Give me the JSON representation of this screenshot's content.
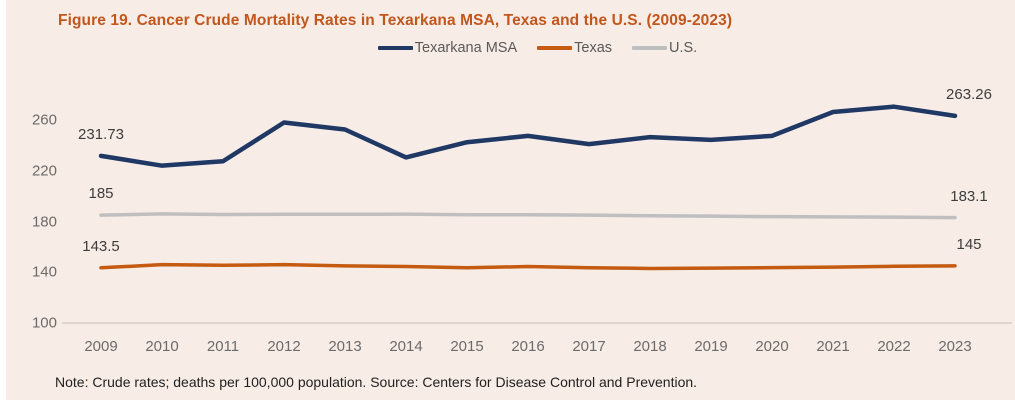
{
  "title": "Figure 19. Cancer Crude Mortality Rates in Texarkana MSA, Texas and the U.S. (2009-2023)",
  "note": "Note: Crude rates; deaths per 100,000 population. Source: Centers for Disease Control and Prevention.",
  "colors": {
    "title_orange": "#c2571d",
    "background": "#f8ece6",
    "axis_line": "#d8cfc9",
    "tick_text": "#6b6b6b",
    "data_label_text": "#3d3d3d"
  },
  "chart_data": {
    "type": "line",
    "title": "Figure 19. Cancer Crude Mortality Rates in Texarkana MSA, Texas and the U.S. (2009-2023)",
    "xlabel": "",
    "ylabel": "",
    "categories": [
      "2009",
      "2010",
      "2011",
      "2012",
      "2013",
      "2014",
      "2015",
      "2016",
      "2017",
      "2018",
      "2019",
      "2020",
      "2021",
      "2022",
      "2023"
    ],
    "yticks": [
      260,
      220,
      180,
      140,
      100
    ],
    "ylim": [
      100,
      285
    ],
    "grid": false,
    "legend_position": "top",
    "series": [
      {
        "name": "Texarkana MSA",
        "color": "#1f3864",
        "stroke_width": 4.5,
        "values": [
          231.73,
          224,
          227.5,
          258,
          252.5,
          230.5,
          242.5,
          247.5,
          241,
          246.5,
          244.3,
          247.5,
          266.3,
          270.5,
          263.26
        ],
        "labels": {
          "start": "231.73",
          "end": "263.26"
        }
      },
      {
        "name": "Texas",
        "color": "#c55a11",
        "stroke_width": 3.5,
        "values": [
          143.5,
          146,
          145.5,
          146,
          145,
          144.5,
          143.5,
          144.5,
          143.5,
          143,
          143.3,
          143.6,
          144,
          144.7,
          145
        ],
        "labels": {
          "start": "143.5",
          "end": "145"
        }
      },
      {
        "name": "U.S.",
        "color": "#bfbfbf",
        "stroke_width": 3.5,
        "values": [
          185,
          186,
          185.5,
          185.7,
          185.7,
          185.8,
          185.3,
          185.3,
          185,
          184.5,
          184.2,
          183.8,
          183.6,
          183.4,
          183.1
        ],
        "labels": {
          "start": "185",
          "end": "183.1"
        }
      }
    ]
  }
}
